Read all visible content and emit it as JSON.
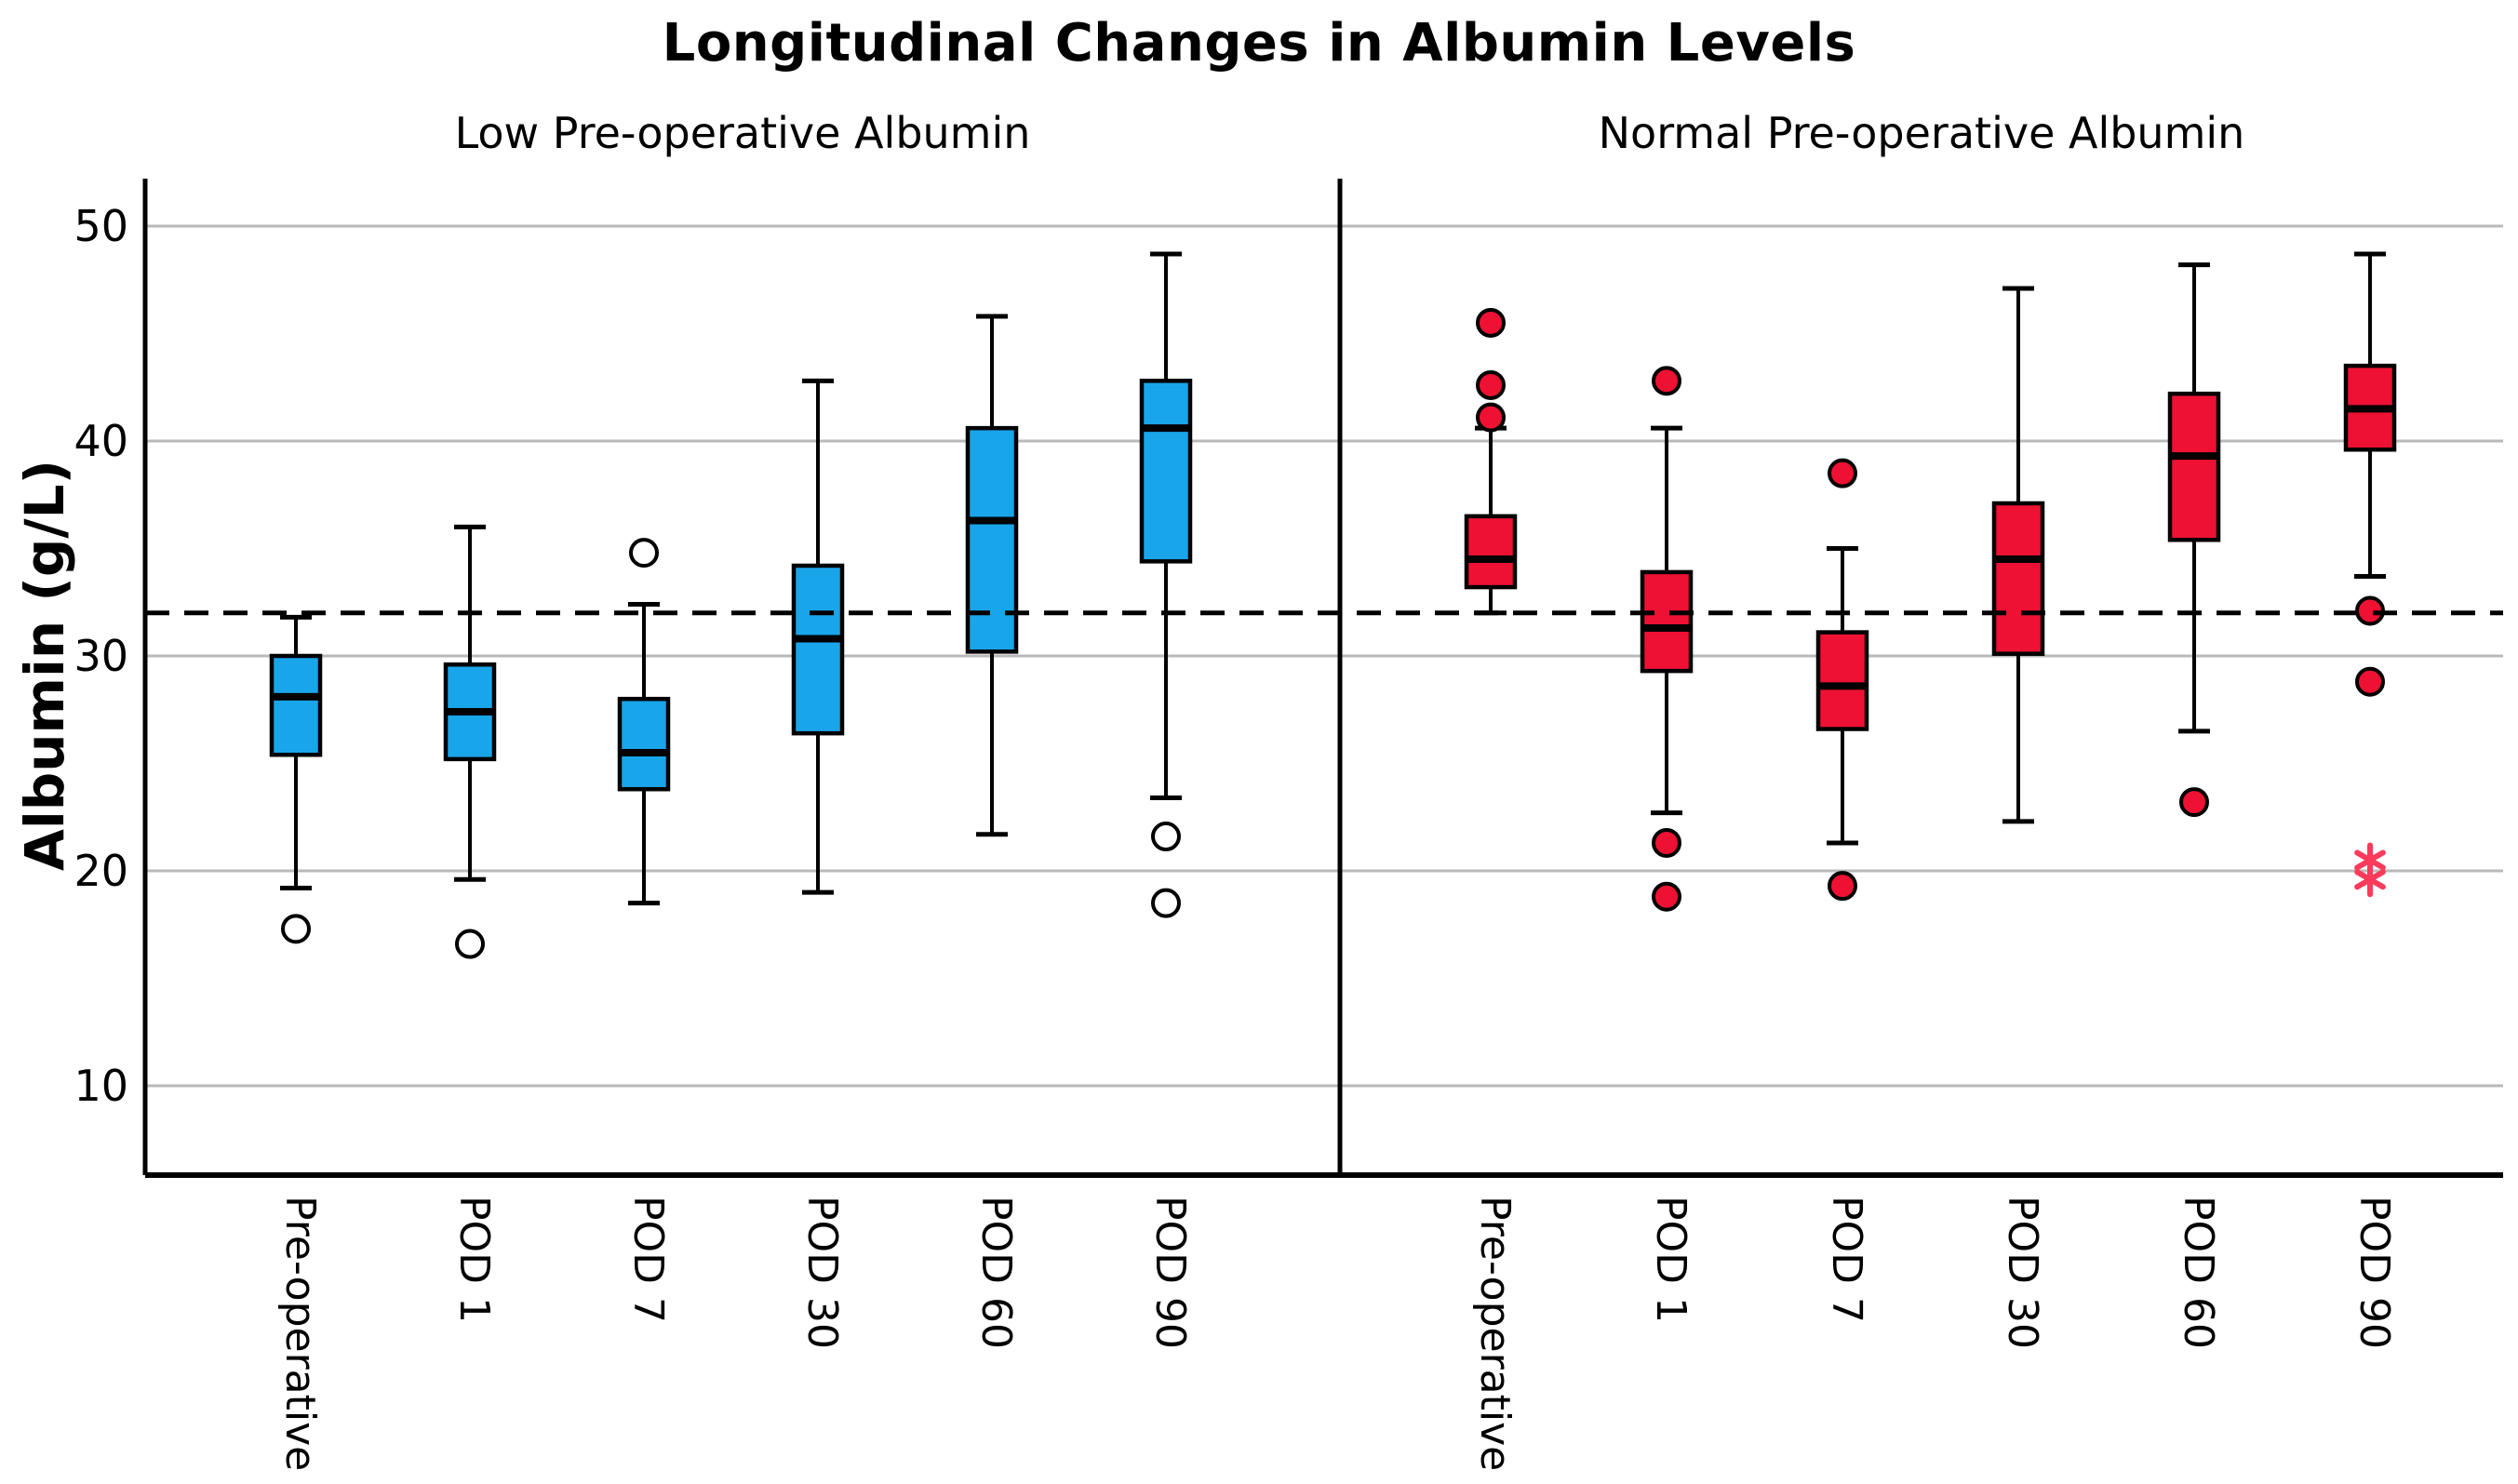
{
  "chart_data": {
    "type": "boxplot",
    "title": "Longitudinal Changes in Albumin Levels",
    "ylabel": "Albumin (g/L)",
    "yticks": [
      50,
      40,
      30,
      20,
      10
    ],
    "ylim": [
      5.7,
      51.7
    ],
    "reference_line_y": 32,
    "grid": true,
    "categories": [
      "Pre-operative",
      "POD 1",
      "POD 7",
      "POD 30",
      "POD 60",
      "POD 90"
    ],
    "colors": {
      "gridline": "#b9b9b9",
      "axis": "#000000",
      "reference_line": "#000000",
      "low_group_box": "#19A5EA",
      "normal_group_box": "#EE1133",
      "extreme_star": "#FB3B5C"
    },
    "panels": [
      {
        "subtitle": "Low Pre-operative Albumin",
        "box_color": "#19A5EA",
        "outlier_marker": "open-circle",
        "extreme_marker": "star",
        "boxes": [
          {
            "category": "Pre-operative",
            "whisker_low": 19.2,
            "q1": 25.4,
            "median": 28.1,
            "q3": 30.0,
            "whisker_high": 31.8,
            "outliers": [
              17.3
            ],
            "extremes": []
          },
          {
            "category": "POD 1",
            "whisker_low": 19.6,
            "q1": 25.2,
            "median": 27.4,
            "q3": 29.6,
            "whisker_high": 36.0,
            "outliers": [
              16.6
            ],
            "extremes": []
          },
          {
            "category": "POD 7",
            "whisker_low": 18.5,
            "q1": 23.8,
            "median": 25.5,
            "q3": 28.0,
            "whisker_high": 32.4,
            "outliers": [
              34.8
            ],
            "extremes": []
          },
          {
            "category": "POD 30",
            "whisker_low": 19.0,
            "q1": 26.4,
            "median": 30.8,
            "q3": 34.2,
            "whisker_high": 42.8,
            "outliers": [],
            "extremes": []
          },
          {
            "category": "POD 60",
            "whisker_low": 21.7,
            "q1": 30.2,
            "median": 36.3,
            "q3": 40.6,
            "whisker_high": 45.8,
            "outliers": [],
            "extremes": []
          },
          {
            "category": "POD 90",
            "whisker_low": 23.4,
            "q1": 34.4,
            "median": 40.6,
            "q3": 42.8,
            "whisker_high": 48.7,
            "outliers": [
              21.6,
              18.5
            ],
            "extremes": []
          }
        ]
      },
      {
        "subtitle": "Normal Pre-operative Albumin",
        "box_color": "#EE1133",
        "outlier_marker": "filled-circle",
        "extreme_marker": "star",
        "boxes": [
          {
            "category": "Pre-operative",
            "whisker_low": 32.0,
            "q1": 33.2,
            "median": 34.5,
            "q3": 36.5,
            "whisker_high": 40.6,
            "outliers": [
              41.1,
              42.6,
              45.5
            ],
            "extremes": []
          },
          {
            "category": "POD 1",
            "whisker_low": 22.7,
            "q1": 29.3,
            "median": 31.3,
            "q3": 33.9,
            "whisker_high": 40.6,
            "outliers": [
              42.8,
              21.3,
              18.8
            ],
            "extremes": []
          },
          {
            "category": "POD 7",
            "whisker_low": 21.3,
            "q1": 26.6,
            "median": 28.6,
            "q3": 31.1,
            "whisker_high": 35.0,
            "outliers": [
              38.5,
              19.3
            ],
            "extremes": []
          },
          {
            "category": "POD 30",
            "whisker_low": 22.3,
            "q1": 30.1,
            "median": 34.5,
            "q3": 37.1,
            "whisker_high": 47.1,
            "outliers": [],
            "extremes": []
          },
          {
            "category": "POD 60",
            "whisker_low": 26.5,
            "q1": 35.4,
            "median": 39.3,
            "q3": 42.2,
            "whisker_high": 48.2,
            "outliers": [
              23.2
            ],
            "extremes": []
          },
          {
            "category": "POD 90",
            "whisker_low": 33.7,
            "q1": 39.6,
            "median": 41.5,
            "q3": 43.5,
            "whisker_high": 48.7,
            "outliers": [
              32.1,
              28.8
            ],
            "extremes": [
              20.5,
              19.6
            ]
          }
        ]
      }
    ]
  }
}
